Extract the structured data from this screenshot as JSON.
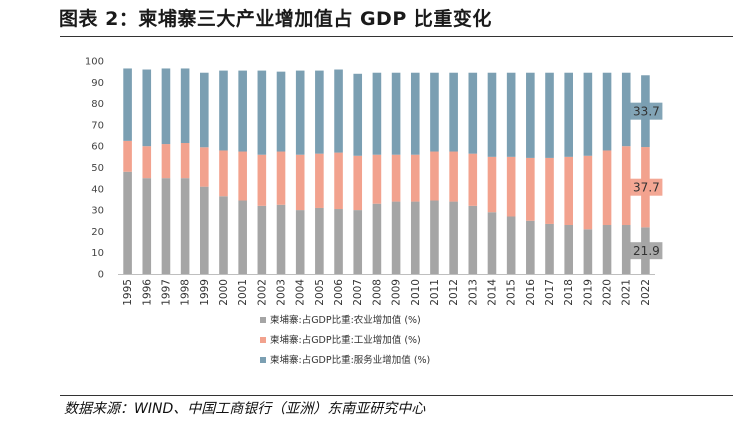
{
  "header": {
    "title": "图表 2：柬埔寨三大产业增加值占 GDP 比重变化"
  },
  "footer": {
    "source": "数据来源：WIND、中国工商银行（亚洲）东南亚研究中心"
  },
  "chart_data": {
    "type": "bar",
    "stacked": true,
    "title": "",
    "xlabel": "",
    "ylabel": "",
    "ylim": [
      0,
      100
    ],
    "yticks": [
      0,
      10,
      20,
      30,
      40,
      50,
      60,
      70,
      80,
      90,
      100
    ],
    "grid": false,
    "legend_position": "bottom-center",
    "categories": [
      "1995",
      "1996",
      "1997",
      "1998",
      "1999",
      "2000",
      "2001",
      "2002",
      "2003",
      "2004",
      "2005",
      "2006",
      "2007",
      "2008",
      "2009",
      "2010",
      "2011",
      "2012",
      "2013",
      "2014",
      "2015",
      "2016",
      "2017",
      "2018",
      "2019",
      "2020",
      "2021",
      "2022"
    ],
    "series": [
      {
        "name": "柬埔寨:占GDP比重:农业增加值 (%)",
        "color": "#a5a5a5",
        "values": [
          48,
          45,
          45,
          45,
          41,
          36.5,
          34.5,
          32,
          32.5,
          30,
          31,
          30.5,
          30,
          33,
          34,
          34,
          34.5,
          34,
          32,
          29,
          27,
          25,
          23.5,
          23,
          21,
          23,
          23,
          21.9
        ]
      },
      {
        "name": "柬埔寨:占GDP比重:工业增加值 (%)",
        "color": "#f2a28e",
        "values": [
          14.5,
          15,
          16,
          16.5,
          18.5,
          21.5,
          23,
          24,
          25,
          26,
          25.5,
          26.5,
          25.5,
          23,
          22,
          22,
          23,
          23.5,
          24.5,
          26,
          28,
          29.5,
          31,
          32,
          34.5,
          35,
          37,
          37.7
        ]
      },
      {
        "name": "柬埔寨:占GDP比重:服务业增加值 (%)",
        "color": "#7b9fb2",
        "values": [
          34,
          36,
          35.5,
          35,
          35,
          37.5,
          38,
          39.5,
          37.5,
          39.5,
          39,
          39,
          38.5,
          38.5,
          38.5,
          38.5,
          37,
          37,
          38,
          39.5,
          39.5,
          40,
          40,
          39.5,
          39,
          36.5,
          34.5,
          33.7
        ]
      }
    ],
    "data_labels": [
      {
        "series": 0,
        "category": "2022",
        "text": "21.9",
        "bg": "#a5a5a5"
      },
      {
        "series": 1,
        "category": "2022",
        "text": "37.7",
        "bg": "#f2a28e"
      },
      {
        "series": 2,
        "category": "2022",
        "text": "33.7",
        "bg": "#7b9fb2"
      }
    ]
  }
}
